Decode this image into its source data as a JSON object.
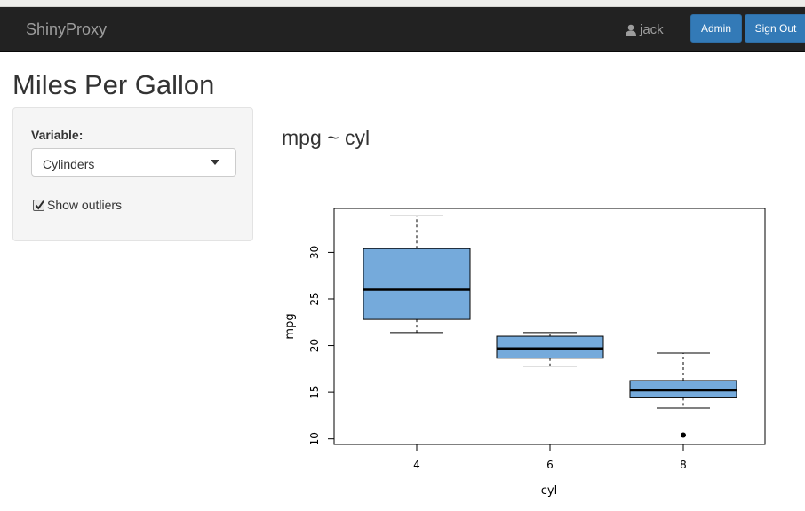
{
  "navbar": {
    "brand": "ShinyProxy",
    "user": "jack",
    "admin_label": "Admin",
    "signout_label": "Sign Out"
  },
  "page": {
    "title": "Miles Per Gallon"
  },
  "sidebar": {
    "variable_label": "Variable:",
    "variable_value": "Cylinders",
    "show_outliers_label": "Show outliers",
    "show_outliers_checked": true
  },
  "plot": {
    "title": "mpg ~ cyl"
  },
  "chart_data": {
    "type": "box",
    "xlabel": "cyl",
    "ylabel": "mpg",
    "categories": [
      "4",
      "6",
      "8"
    ],
    "yticks": [
      10,
      15,
      20,
      25,
      30
    ],
    "ylim": [
      9.4,
      34.7
    ],
    "box_color": "#75AADB",
    "boxes": [
      {
        "category": "4",
        "whisker_low": 21.4,
        "q1": 22.8,
        "median": 26.0,
        "q3": 30.4,
        "whisker_high": 33.9,
        "outliers": []
      },
      {
        "category": "6",
        "whisker_low": 17.8,
        "q1": 18.65,
        "median": 19.7,
        "q3": 21.0,
        "whisker_high": 21.4,
        "outliers": []
      },
      {
        "category": "8",
        "whisker_low": 13.3,
        "q1": 14.4,
        "median": 15.2,
        "q3": 16.25,
        "whisker_high": 19.2,
        "outliers": [
          10.4
        ]
      }
    ]
  }
}
